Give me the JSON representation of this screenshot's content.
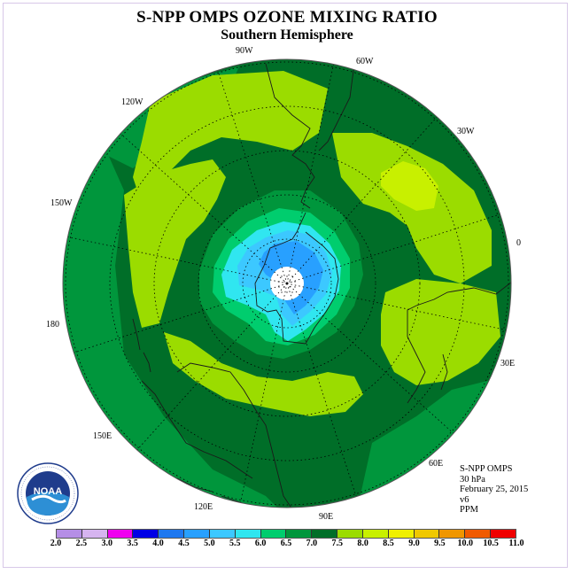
{
  "title": "S-NPP OMPS OZONE MIXING RATIO",
  "subtitle": "Southern Hemisphere",
  "longitude_labels": [
    "90W",
    "60W",
    "30W",
    "0",
    "30E",
    "60E",
    "90E",
    "120E",
    "150E",
    "180",
    "150W",
    "120W"
  ],
  "info": {
    "instrument": "S-NPP OMPS",
    "level": "30 hPa",
    "date": "February 25, 2015",
    "version": "v6",
    "units": "PPM"
  },
  "logo": {
    "text": "NOAA",
    "icon": "noaa-logo"
  },
  "colorbar": {
    "ticks": [
      "2.0",
      "2.5",
      "3.0",
      "3.5",
      "4.0",
      "4.5",
      "5.0",
      "5.5",
      "6.0",
      "6.5",
      "7.0",
      "7.5",
      "8.0",
      "8.5",
      "9.0",
      "9.5",
      "10.0",
      "10.5",
      "11.0"
    ],
    "colors": [
      "#b58ee6",
      "#d6b4f0",
      "#f000f0",
      "#0000e6",
      "#1e78f0",
      "#28a0ff",
      "#3cc8ff",
      "#30e6f0",
      "#00cd6e",
      "#00963c",
      "#006e28",
      "#9bdc00",
      "#c8f000",
      "#f0f000",
      "#f0c800",
      "#f09600",
      "#f05a00",
      "#f00000",
      "#8c4b32"
    ]
  },
  "colors": {
    "ocean_low": "#00963c",
    "mid": "#006e28",
    "high": "#9bdc00",
    "core": "#28a0ff"
  }
}
